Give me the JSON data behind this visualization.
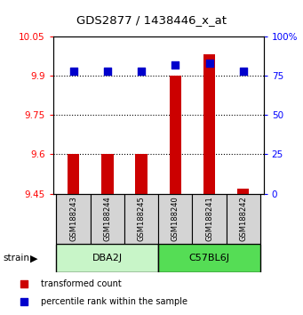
{
  "title": "GDS2877 / 1438446_x_at",
  "samples": [
    "GSM188243",
    "GSM188244",
    "GSM188245",
    "GSM188240",
    "GSM188241",
    "GSM188242"
  ],
  "group_labels": [
    "DBA2J",
    "C57BL6J"
  ],
  "group_colors": [
    "#c8f5c8",
    "#55dd55"
  ],
  "red_values": [
    9.6,
    9.6,
    9.6,
    9.9,
    9.98,
    9.47
  ],
  "blue_values": [
    78,
    78,
    78,
    82,
    83,
    78
  ],
  "ylim_left": [
    9.45,
    10.05
  ],
  "ylim_right": [
    0,
    100
  ],
  "yticks_left": [
    9.45,
    9.6,
    9.75,
    9.9,
    10.05
  ],
  "yticks_right": [
    0,
    25,
    50,
    75,
    100
  ],
  "ytick_labels_left": [
    "9.45",
    "9.6",
    "9.75",
    "9.9",
    "10.05"
  ],
  "ytick_labels_right": [
    "0",
    "25",
    "50",
    "75",
    "100%"
  ],
  "bar_bottom": 9.45,
  "bar_color": "#cc0000",
  "dot_color": "#0000cc",
  "dot_size": 35,
  "legend_red_label": "transformed count",
  "legend_blue_label": "percentile rank within the sample",
  "strain_label": "strain",
  "bar_width": 0.35
}
